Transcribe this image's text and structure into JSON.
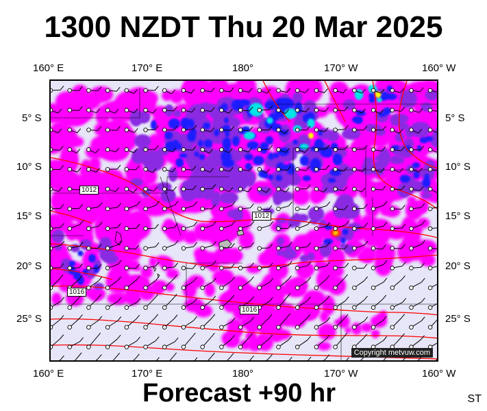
{
  "title": "1300 NZDT Thu 20 Mar 2025",
  "footer": "Forecast +90 hr",
  "code": "ST",
  "copyright": "Copyright metvuw.com",
  "axes": {
    "top": [
      "160° E",
      "170° E",
      "180°",
      "170° W",
      "160° W"
    ],
    "bottom": [
      "160° E",
      "170° E",
      "180°",
      "170° W",
      "160° W"
    ],
    "left": [
      "5° S",
      "10° S",
      "15° S",
      "20° S",
      "25° S"
    ],
    "right": [
      "5° S",
      "10° S",
      "15° S",
      "20° S",
      "25° S"
    ]
  },
  "isobars": [
    "1012",
    "1012",
    "1016",
    "1016"
  ],
  "colors": {
    "background": "#e6e6f8",
    "rain_light": "#ff00ff",
    "rain_medium": "#8a2be2",
    "rain_heavy": "#1a1aff",
    "rain_very_heavy": "#00e5e5",
    "rain_extreme": "#ffff00",
    "isobar": "#ff0000"
  }
}
